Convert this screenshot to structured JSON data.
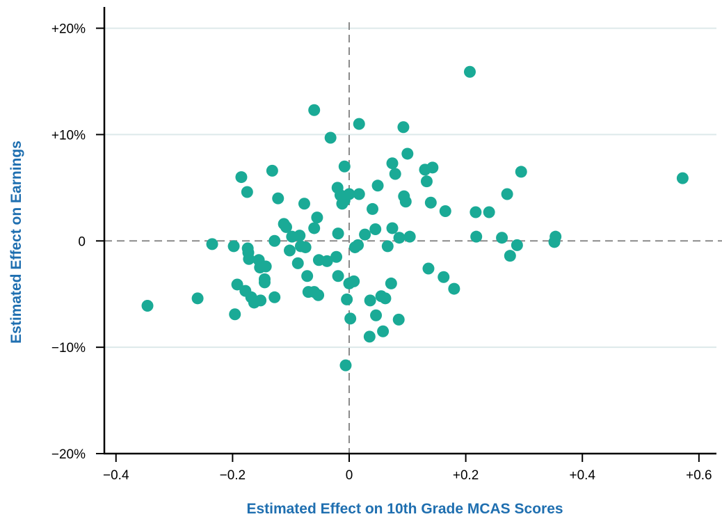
{
  "chart_data": {
    "type": "scatter",
    "xlabel": "Estimated Effect on 10th Grade MCAS Scores",
    "ylabel": "Estimated Effect on Earnings",
    "xlim": [
      -0.42,
      0.63
    ],
    "ylim": [
      -20,
      22
    ],
    "xticks": [
      -0.4,
      -0.2,
      0,
      0.2,
      0.4,
      0.6
    ],
    "xtick_labels": [
      "−0.4",
      "−0.2",
      "0",
      "+0.2",
      "+0.4",
      "+0.6"
    ],
    "yticks": [
      -20,
      -10,
      0,
      10,
      20
    ],
    "ytick_labels": [
      "−20%",
      "−10%",
      "0",
      "+10%",
      "+20%"
    ],
    "grid": "horizontal",
    "reference_lines": "dashed lines at x = 0 and y = 0",
    "colors": {
      "points": "#1aaa96",
      "axis_title": "#1f6fb0",
      "grid": "#dde9ea",
      "reference": "#8a8a8a",
      "axis": "#000000"
    },
    "points": [
      {
        "x": -0.346,
        "y": -6.1
      },
      {
        "x": -0.26,
        "y": -5.4
      },
      {
        "x": -0.235,
        "y": -0.3
      },
      {
        "x": -0.198,
        "y": -0.5
      },
      {
        "x": -0.196,
        "y": -6.9
      },
      {
        "x": -0.192,
        "y": -4.1
      },
      {
        "x": -0.185,
        "y": 6.0
      },
      {
        "x": -0.178,
        "y": -4.7
      },
      {
        "x": -0.175,
        "y": 4.6
      },
      {
        "x": -0.174,
        "y": -0.7
      },
      {
        "x": -0.173,
        "y": -1.1
      },
      {
        "x": -0.172,
        "y": -1.7
      },
      {
        "x": -0.168,
        "y": -5.3
      },
      {
        "x": -0.163,
        "y": -5.8
      },
      {
        "x": -0.155,
        "y": -1.8
      },
      {
        "x": -0.153,
        "y": -2.5
      },
      {
        "x": -0.152,
        "y": -5.6
      },
      {
        "x": -0.145,
        "y": -3.6
      },
      {
        "x": -0.145,
        "y": -3.9
      },
      {
        "x": -0.143,
        "y": -2.4
      },
      {
        "x": -0.132,
        "y": 6.6
      },
      {
        "x": -0.128,
        "y": 0.0
      },
      {
        "x": -0.128,
        "y": -5.3
      },
      {
        "x": -0.122,
        "y": 4.0
      },
      {
        "x": -0.112,
        "y": 1.6
      },
      {
        "x": -0.108,
        "y": 1.3
      },
      {
        "x": -0.102,
        "y": -0.9
      },
      {
        "x": -0.098,
        "y": 0.4
      },
      {
        "x": -0.088,
        "y": -2.1
      },
      {
        "x": -0.085,
        "y": 0.5
      },
      {
        "x": -0.083,
        "y": -0.5
      },
      {
        "x": -0.077,
        "y": 3.5
      },
      {
        "x": -0.075,
        "y": -0.6
      },
      {
        "x": -0.072,
        "y": -3.3
      },
      {
        "x": -0.07,
        "y": -4.8
      },
      {
        "x": -0.06,
        "y": 12.3
      },
      {
        "x": -0.06,
        "y": 1.2
      },
      {
        "x": -0.06,
        "y": -4.8
      },
      {
        "x": -0.055,
        "y": 2.2
      },
      {
        "x": -0.053,
        "y": -5.1
      },
      {
        "x": -0.052,
        "y": -1.8
      },
      {
        "x": -0.038,
        "y": -1.9
      },
      {
        "x": -0.032,
        "y": 9.7
      },
      {
        "x": -0.022,
        "y": -1.5
      },
      {
        "x": -0.02,
        "y": 5.0
      },
      {
        "x": -0.019,
        "y": 0.7
      },
      {
        "x": -0.019,
        "y": -3.3
      },
      {
        "x": -0.015,
        "y": 4.3
      },
      {
        "x": -0.012,
        "y": 3.5
      },
      {
        "x": -0.008,
        "y": 7.0
      },
      {
        "x": -0.008,
        "y": 3.8
      },
      {
        "x": -0.006,
        "y": -11.7
      },
      {
        "x": -0.004,
        "y": -5.5
      },
      {
        "x": 0.0,
        "y": -4.0
      },
      {
        "x": 0.0,
        "y": 4.4
      },
      {
        "x": 0.002,
        "y": -7.3
      },
      {
        "x": 0.008,
        "y": -3.8
      },
      {
        "x": 0.01,
        "y": -0.6
      },
      {
        "x": 0.015,
        "y": -0.4
      },
      {
        "x": 0.017,
        "y": 11.0
      },
      {
        "x": 0.017,
        "y": 4.4
      },
      {
        "x": 0.027,
        "y": 0.6
      },
      {
        "x": 0.035,
        "y": -9.0
      },
      {
        "x": 0.036,
        "y": -5.6
      },
      {
        "x": 0.04,
        "y": 3.0
      },
      {
        "x": 0.045,
        "y": 1.1
      },
      {
        "x": 0.046,
        "y": -7.0
      },
      {
        "x": 0.049,
        "y": 5.2
      },
      {
        "x": 0.055,
        "y": -5.2
      },
      {
        "x": 0.058,
        "y": -8.5
      },
      {
        "x": 0.062,
        "y": -5.4
      },
      {
        "x": 0.066,
        "y": -0.5
      },
      {
        "x": 0.072,
        "y": -4.0
      },
      {
        "x": 0.074,
        "y": 7.3
      },
      {
        "x": 0.074,
        "y": 1.2
      },
      {
        "x": 0.079,
        "y": 6.3
      },
      {
        "x": 0.085,
        "y": -7.4
      },
      {
        "x": 0.086,
        "y": 0.3
      },
      {
        "x": 0.093,
        "y": 10.7
      },
      {
        "x": 0.094,
        "y": 4.2
      },
      {
        "x": 0.097,
        "y": 3.7
      },
      {
        "x": 0.1,
        "y": 8.2
      },
      {
        "x": 0.104,
        "y": 0.4
      },
      {
        "x": 0.13,
        "y": 6.7
      },
      {
        "x": 0.133,
        "y": 5.6
      },
      {
        "x": 0.136,
        "y": -2.6
      },
      {
        "x": 0.14,
        "y": 3.6
      },
      {
        "x": 0.143,
        "y": 6.9
      },
      {
        "x": 0.162,
        "y": -3.4
      },
      {
        "x": 0.165,
        "y": 2.8
      },
      {
        "x": 0.18,
        "y": -4.5
      },
      {
        "x": 0.207,
        "y": 15.9
      },
      {
        "x": 0.217,
        "y": 2.7
      },
      {
        "x": 0.218,
        "y": 0.4
      },
      {
        "x": 0.24,
        "y": 2.7
      },
      {
        "x": 0.262,
        "y": 0.3
      },
      {
        "x": 0.271,
        "y": 4.4
      },
      {
        "x": 0.276,
        "y": -1.4
      },
      {
        "x": 0.288,
        "y": -0.4
      },
      {
        "x": 0.295,
        "y": 6.5
      },
      {
        "x": 0.352,
        "y": -0.1
      },
      {
        "x": 0.354,
        "y": 0.4
      },
      {
        "x": 0.572,
        "y": 5.9
      }
    ]
  }
}
